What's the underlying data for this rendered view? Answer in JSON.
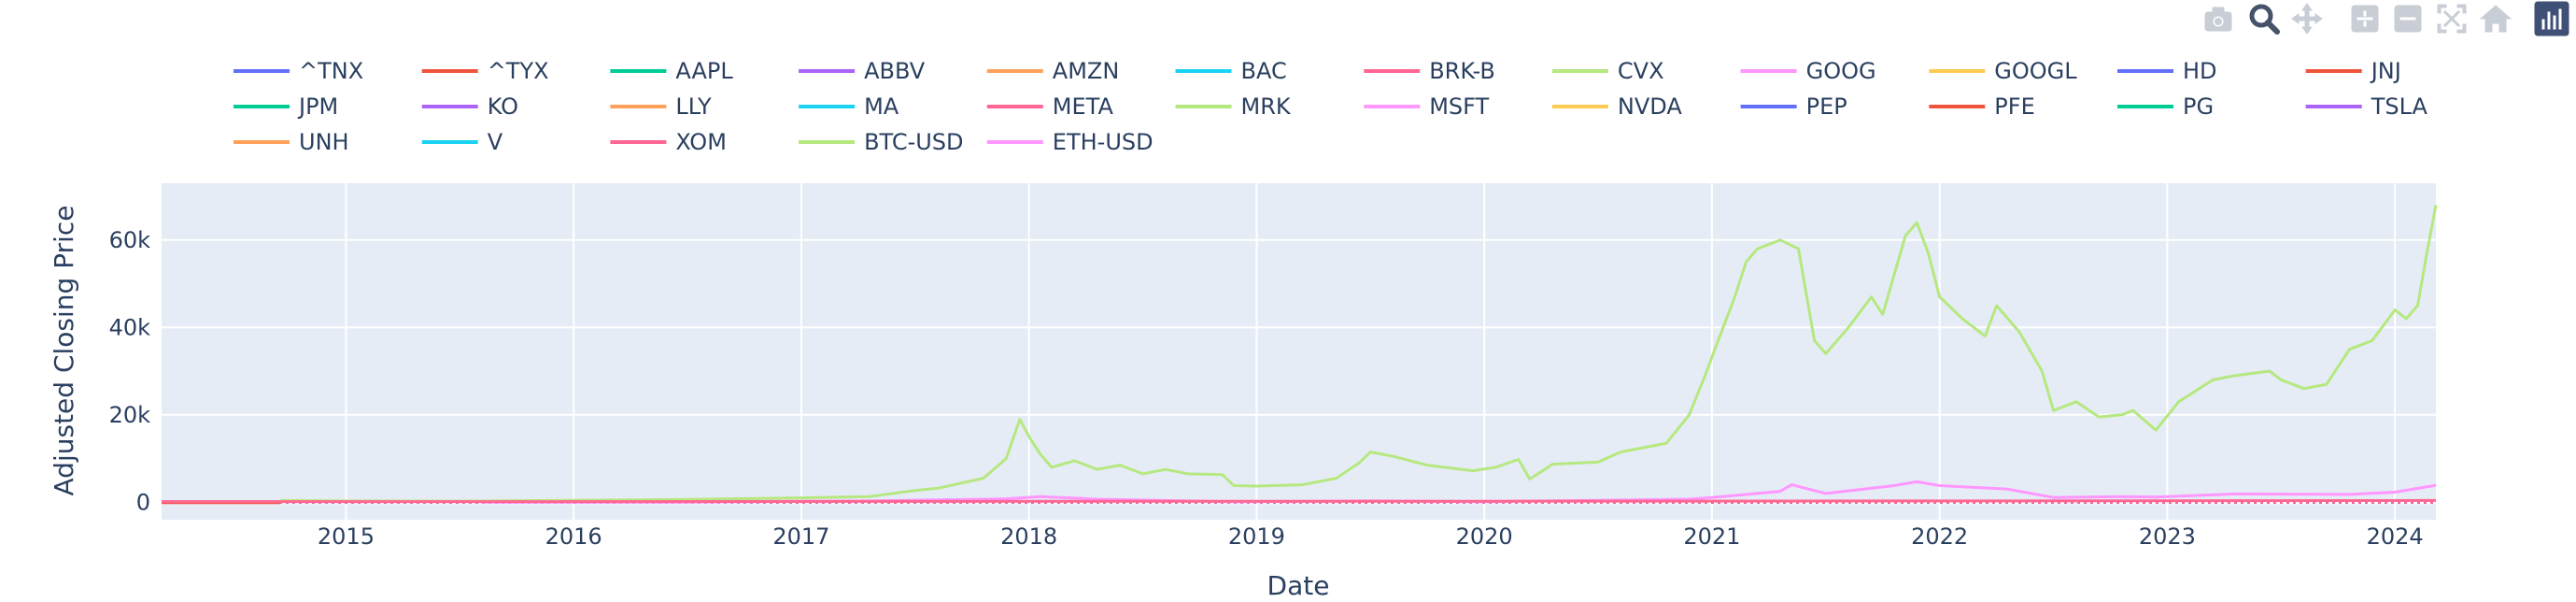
{
  "modebar": {
    "buttons": [
      {
        "icon": "camera-icon",
        "name": "download-png-button"
      },
      {
        "icon": "zoom-icon",
        "name": "zoom-button",
        "active": true
      },
      {
        "icon": "pan-icon",
        "name": "pan-button"
      },
      {
        "icon": "zoom-in-icon",
        "name": "zoom-in-button"
      },
      {
        "icon": "zoom-out-icon",
        "name": "zoom-out-button"
      },
      {
        "icon": "autoscale-icon",
        "name": "autoscale-button"
      },
      {
        "icon": "home-icon",
        "name": "reset-axes-button"
      },
      {
        "icon": "plotly-logo-icon",
        "name": "plotly-logo-button"
      }
    ],
    "colors": {
      "idle": "#c8cdd6",
      "active": "#44526a",
      "logo": "#3f4f75"
    }
  },
  "chart_data": {
    "type": "line",
    "title": "",
    "xlabel": "Date",
    "ylabel": "Adjusted Closing Price",
    "xlim": [
      2014.19,
      2024.18
    ],
    "ylim": [
      -4000,
      73000
    ],
    "x_ticks": [
      2015,
      2016,
      2017,
      2018,
      2019,
      2020,
      2021,
      2022,
      2023,
      2024
    ],
    "y_ticks": [
      0,
      20000,
      40000,
      60000
    ],
    "y_tick_labels": [
      "0",
      "20k",
      "40k",
      "60k"
    ],
    "grid": true,
    "legend_placement": "top",
    "plot_bgcolor": "#e5ecf6",
    "legend": [
      "^TNX",
      "^TYX",
      "AAPL",
      "ABBV",
      "AMZN",
      "BAC",
      "BRK-B",
      "CVX",
      "GOOG",
      "GOOGL",
      "HD",
      "JNJ",
      "JPM",
      "KO",
      "LLY",
      "MA",
      "META",
      "MRK",
      "MSFT",
      "NVDA",
      "PEP",
      "PFE",
      "PG",
      "TSLA",
      "UNH",
      "V",
      "XOM",
      "BTC-USD",
      "ETH-USD"
    ],
    "colors": [
      "#636efa",
      "#EF553B",
      "#00cc96",
      "#ab63fa",
      "#FFA15A",
      "#19d3f3",
      "#FF6692",
      "#B6E880",
      "#FF97FF",
      "#FECB52"
    ],
    "series": [
      {
        "name": "BTC-USD",
        "color": "#B6E880",
        "x": [
          2014.71,
          2015.0,
          2015.5,
          2016.0,
          2016.5,
          2017.0,
          2017.3,
          2017.5,
          2017.6,
          2017.8,
          2017.9,
          2017.96,
          2018.0,
          2018.05,
          2018.1,
          2018.2,
          2018.3,
          2018.4,
          2018.5,
          2018.6,
          2018.7,
          2018.85,
          2018.9,
          2019.0,
          2019.2,
          2019.35,
          2019.45,
          2019.5,
          2019.6,
          2019.75,
          2019.95,
          2020.05,
          2020.15,
          2020.2,
          2020.3,
          2020.5,
          2020.6,
          2020.8,
          2020.9,
          2020.97,
          2021.02,
          2021.1,
          2021.15,
          2021.2,
          2021.3,
          2021.38,
          2021.45,
          2021.5,
          2021.6,
          2021.7,
          2021.75,
          2021.85,
          2021.9,
          2021.95,
          2022.0,
          2022.1,
          2022.2,
          2022.25,
          2022.35,
          2022.45,
          2022.5,
          2022.6,
          2022.7,
          2022.8,
          2022.85,
          2022.95,
          2023.05,
          2023.2,
          2023.3,
          2023.45,
          2023.5,
          2023.6,
          2023.7,
          2023.8,
          2023.9,
          2024.0,
          2024.05,
          2024.1,
          2024.14,
          2024.18
        ],
        "y": [
          400,
          300,
          250,
          430,
          650,
          1000,
          1300,
          2700,
          3200,
          5500,
          10000,
          19000,
          15000,
          11000,
          8000,
          9500,
          7500,
          8500,
          6500,
          7500,
          6500,
          6300,
          3800,
          3700,
          4000,
          5500,
          9000,
          11500,
          10500,
          8500,
          7200,
          8000,
          9800,
          5300,
          8700,
          9200,
          11500,
          13500,
          20000,
          29000,
          36000,
          47000,
          55000,
          58000,
          60000,
          58000,
          37000,
          34000,
          40000,
          47000,
          43000,
          61000,
          64000,
          57000,
          47000,
          42000,
          38000,
          45000,
          39000,
          30000,
          21000,
          23000,
          19500,
          20000,
          21000,
          16500,
          23000,
          28000,
          29000,
          30000,
          28000,
          26000,
          27000,
          35000,
          37000,
          44000,
          42000,
          45000,
          57000,
          68000
        ]
      },
      {
        "name": "ETH-USD",
        "color": "#FF97FF",
        "x": [
          2015.6,
          2016.5,
          2017.3,
          2017.9,
          2018.05,
          2018.3,
          2018.9,
          2019.5,
          2020.0,
          2020.9,
          2021.0,
          2021.3,
          2021.35,
          2021.5,
          2021.8,
          2021.9,
          2022.0,
          2022.3,
          2022.5,
          2022.8,
          2022.95,
          2023.3,
          2023.8,
          2024.0,
          2024.18
        ],
        "y": [
          1,
          12,
          300,
          800,
          1300,
          700,
          100,
          300,
          130,
          700,
          1100,
          2500,
          4000,
          2000,
          3800,
          4700,
          3800,
          3000,
          1100,
          1300,
          1200,
          1900,
          1800,
          2300,
          3900
        ]
      },
      {
        "name": "BRK-B",
        "color": "#FF6692",
        "x": [
          2014.19,
          2016.0,
          2018.0,
          2020.0,
          2022.0,
          2024.18
        ],
        "y": [
          125,
          140,
          210,
          230,
          300,
          410
        ]
      }
    ]
  }
}
